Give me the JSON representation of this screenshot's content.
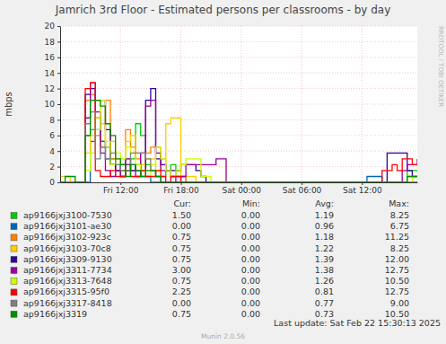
{
  "chart_data": {
    "type": "line",
    "title": "Jamrich 3rd Floor - Estimated persons per classrooms - by day",
    "y_label": "mbps",
    "side_text": "RRDTOOL / TOBI OETIKER",
    "footer": "Last update: Sat Feb 22 15:30:13 2025",
    "version": "Munin 2.0.56",
    "line_style": "step",
    "grid": true,
    "legend": "bottom",
    "xlim": [
      6,
      41.5
    ],
    "xticks": [
      {
        "value": 12,
        "label": "Fri 12:00"
      },
      {
        "value": 18,
        "label": "Fri 18:00"
      },
      {
        "value": 24,
        "label": "Sat 00:00"
      },
      {
        "value": 30,
        "label": "Sat 06:00"
      },
      {
        "value": 36,
        "label": "Sat 12:00"
      }
    ],
    "ylim": [
      0,
      20
    ],
    "yticks": [
      0,
      2,
      4,
      6,
      8,
      10,
      12,
      14,
      16,
      18,
      20
    ],
    "stat_headers": [
      "Cur:",
      "Min:",
      "Avg:",
      "Max:"
    ],
    "x": [
      6,
      6.5,
      7,
      7.5,
      8,
      8.5,
      9,
      9.5,
      10,
      10.5,
      11,
      11.5,
      12,
      12.5,
      13,
      13.5,
      14,
      14.5,
      15,
      15.5,
      16,
      16.5,
      17,
      17.5,
      18,
      18.5,
      19,
      19.5,
      20,
      20.5,
      21,
      21.5,
      22,
      22.5,
      23,
      23.5,
      24,
      24.5,
      25,
      25.5,
      26,
      26.5,
      27,
      27.5,
      28,
      28.5,
      29,
      29.5,
      30,
      30.5,
      31,
      31.5,
      32,
      32.5,
      33,
      33.5,
      34,
      34.5,
      35,
      35.5,
      36,
      36.5,
      37,
      37.5,
      38,
      38.5,
      39,
      39.5,
      40,
      40.5,
      41,
      41.5
    ],
    "series": [
      {
        "name": "ap9166jxj3100-7530",
        "color": "#00cc00",
        "stats": [
          "1.50",
          "0.00",
          "1.19",
          "8.25"
        ],
        "values": [
          0,
          0,
          0,
          0,
          0,
          6,
          6.75,
          8.25,
          5.25,
          4.5,
          3,
          2.25,
          1.5,
          2.25,
          3,
          7.5,
          6,
          2.25,
          1.5,
          0.75,
          0.75,
          1.5,
          2.25,
          0.75,
          0.75,
          0,
          0,
          0,
          0,
          0,
          0,
          0,
          0,
          0,
          0,
          0,
          0,
          0,
          0,
          0,
          0,
          0,
          0,
          0,
          0,
          0,
          0,
          0,
          0,
          0,
          0,
          0,
          0,
          0,
          0,
          0,
          0,
          0,
          0,
          0,
          0,
          0,
          0,
          0,
          0,
          0,
          0,
          0,
          0,
          1.5,
          1.5,
          1.5
        ]
      },
      {
        "name": "ap9166jxj3101-ae30",
        "color": "#0066b3",
        "stats": [
          "0.00",
          "0.00",
          "0.96",
          "6.75"
        ],
        "values": [
          0,
          0,
          0,
          0,
          0,
          0,
          5.25,
          6.75,
          5.25,
          3,
          2.25,
          1.5,
          0.75,
          1.5,
          2.25,
          1.5,
          0.75,
          0.75,
          0,
          0,
          0,
          0,
          0,
          0,
          0,
          0,
          0,
          0,
          0,
          0,
          0,
          0,
          0,
          0,
          0,
          0,
          0,
          0,
          0,
          0,
          0,
          0,
          0,
          0,
          0,
          0,
          0,
          0,
          0,
          0,
          0,
          0,
          0,
          0,
          0,
          0,
          0,
          0,
          0,
          0,
          0,
          0.75,
          0.75,
          0.75,
          0,
          0,
          0,
          0,
          0,
          0,
          0,
          0
        ]
      },
      {
        "name": "ap9166jxj3102-923c",
        "color": "#ff8000",
        "stats": [
          "0.75",
          "0.00",
          "1.18",
          "11.25"
        ],
        "values": [
          0,
          0,
          0,
          0,
          0,
          10.5,
          11.25,
          6,
          4.5,
          10.5,
          3,
          1.5,
          1.5,
          6.75,
          4.5,
          3,
          1.5,
          3.75,
          4.5,
          4.5,
          3,
          1.5,
          0.75,
          0.75,
          0.75,
          0,
          0,
          0,
          0,
          0,
          0,
          0,
          0,
          0,
          0,
          0,
          0,
          0,
          0,
          0,
          0,
          0,
          0,
          0,
          0,
          0,
          0,
          0,
          0,
          0,
          0,
          0,
          0,
          0,
          0,
          0,
          0,
          0,
          0,
          0,
          0,
          0,
          0,
          0,
          0,
          0,
          0,
          0,
          0,
          0.75,
          0.75,
          0.75
        ]
      },
      {
        "name": "ap9166jxj3103-70c8",
        "color": "#ffcc00",
        "stats": [
          "0.75",
          "0.00",
          "1.22",
          "8.25"
        ],
        "values": [
          0.75,
          0.75,
          0,
          0,
          0,
          3.75,
          6,
          8.25,
          7.5,
          4.5,
          5.25,
          3,
          2.25,
          5.25,
          6,
          3.75,
          2.25,
          3,
          3,
          1.5,
          2.25,
          7.5,
          8.25,
          8.25,
          0.75,
          0.75,
          0.75,
          0,
          0,
          0,
          0,
          0,
          0,
          0,
          0,
          0,
          0,
          0,
          0,
          0,
          0,
          0,
          0,
          0,
          0,
          0,
          0,
          0,
          0,
          0,
          0,
          0,
          0,
          0,
          0,
          0,
          0,
          0,
          0,
          0,
          0,
          0,
          0,
          0,
          0,
          0,
          0,
          0,
          0,
          0.75,
          0.75,
          0.75
        ]
      },
      {
        "name": "ap9166jxj3309-9130",
        "color": "#330099",
        "stats": [
          "0.75",
          "0.00",
          "1.39",
          "12.00"
        ],
        "values": [
          0,
          0,
          0,
          0,
          0,
          11.25,
          12,
          10.5,
          10.5,
          6.75,
          2.25,
          1.5,
          2.25,
          3,
          1.5,
          2.25,
          1.5,
          10.5,
          12,
          3,
          2.25,
          1.5,
          1.5,
          1.5,
          2.25,
          2.25,
          2.25,
          1.5,
          0.75,
          0,
          0,
          0,
          0,
          0,
          0,
          0,
          0,
          0,
          0,
          0,
          0,
          0,
          0,
          0,
          0,
          0,
          0,
          0,
          0,
          0,
          0,
          0,
          0,
          0,
          0,
          0,
          0,
          0,
          0,
          0,
          0,
          0,
          0,
          0,
          0,
          3.75,
          3.75,
          3.75,
          3.75,
          1.5,
          0.75,
          0.75
        ]
      },
      {
        "name": "ap9166jxj3311-7734",
        "color": "#990099",
        "stats": [
          "3.00",
          "0.00",
          "1.38",
          "12.75"
        ],
        "values": [
          0,
          0,
          0,
          0,
          0,
          8.25,
          12.75,
          9,
          3.75,
          1.5,
          0.75,
          1.5,
          0.75,
          2.25,
          1.5,
          0.75,
          3.75,
          9.75,
          10.5,
          3.75,
          1.5,
          1.5,
          0.75,
          0,
          0.75,
          2.25,
          2.25,
          2.25,
          2.25,
          2.25,
          2.25,
          3,
          3,
          0,
          0,
          0,
          0,
          0,
          0,
          0,
          0,
          0,
          0,
          0,
          0,
          0,
          0,
          0,
          0,
          0,
          0,
          0,
          0,
          0,
          0,
          0,
          0,
          0,
          0,
          0,
          0,
          0,
          0,
          0,
          0,
          0,
          0,
          0,
          1.5,
          2.25,
          2.25,
          3
        ]
      },
      {
        "name": "ap9166jxj3313-7648",
        "color": "#ccff00",
        "stats": [
          "0.75",
          "0.00",
          "1.26",
          "10.50"
        ],
        "values": [
          0,
          0,
          0,
          0,
          0,
          1.5,
          3.75,
          6.75,
          10.5,
          5.25,
          2.25,
          3.75,
          3,
          4.5,
          3.75,
          2.25,
          1.5,
          0.75,
          2.25,
          4.5,
          3,
          1.5,
          0.75,
          1.5,
          2.25,
          3,
          3,
          3,
          0.75,
          0.75,
          0,
          0,
          0,
          0,
          0,
          0,
          0,
          0,
          0,
          0,
          0,
          0,
          0,
          0,
          0,
          0,
          0,
          0,
          0,
          0,
          0,
          0,
          0,
          0,
          0,
          0,
          0,
          0,
          0,
          0,
          0,
          0,
          0,
          0,
          0,
          0,
          0,
          0,
          0,
          0,
          0.75,
          0.75
        ]
      },
      {
        "name": "ap9166jxj3315-95f0",
        "color": "#ff0000",
        "stats": [
          "2.25",
          "0.00",
          "0.81",
          "12.75"
        ],
        "values": [
          0,
          0,
          0,
          0,
          0,
          12,
          12.75,
          1.5,
          0.75,
          0.75,
          1.5,
          0.75,
          0.75,
          1.5,
          0.75,
          0.75,
          1.5,
          0.75,
          0.75,
          1.5,
          0.75,
          0,
          0.75,
          0.75,
          0,
          0,
          0,
          0,
          0,
          0,
          0,
          0,
          0,
          0,
          0,
          0,
          0,
          0,
          0,
          0,
          0,
          0,
          0,
          0,
          0,
          0,
          0,
          0,
          0,
          0,
          0,
          0,
          0,
          0,
          0,
          0,
          0,
          0,
          0,
          0,
          0,
          0,
          0,
          0,
          1.5,
          1.5,
          2.25,
          1.5,
          3,
          3,
          2.25,
          2.25
        ]
      },
      {
        "name": "ap9166jxj3317-8418",
        "color": "#808080",
        "stats": [
          "0.00",
          "0.00",
          "0.77",
          "9.00"
        ],
        "values": [
          0,
          0,
          0,
          0,
          0,
          7.5,
          9,
          3,
          4.5,
          3,
          3.75,
          2.25,
          1.5,
          1.5,
          3.75,
          3.75,
          3.75,
          3,
          1.5,
          0.75,
          0,
          0,
          0,
          0,
          0,
          0,
          0,
          0,
          0,
          0,
          0,
          0,
          0,
          0,
          0,
          0,
          0,
          0,
          0,
          0,
          0,
          0,
          0,
          0,
          0,
          0,
          0,
          0,
          0,
          0,
          0,
          0,
          0,
          0,
          0,
          0,
          0,
          0,
          0,
          0,
          0,
          0,
          0,
          0,
          0,
          0,
          0,
          0,
          0,
          0,
          0,
          0
        ]
      },
      {
        "name": "ap9166jxj3319",
        "color": "#008f00",
        "stats": [
          "0.75",
          "0.00",
          "0.73",
          "10.50"
        ],
        "values": [
          0,
          0.75,
          0.75,
          0,
          0,
          6,
          10.5,
          10.5,
          9.75,
          7.5,
          6,
          3,
          2.25,
          0.75,
          2.25,
          1.5,
          0.75,
          1.5,
          1.5,
          0.75,
          0,
          0,
          0,
          0,
          0,
          0,
          0,
          0,
          0,
          0,
          0,
          0,
          0,
          0,
          0,
          0,
          0,
          0,
          0,
          0,
          0,
          0,
          0,
          0,
          0,
          0,
          0,
          0,
          0,
          0,
          0,
          0,
          0,
          0,
          0,
          0,
          0,
          0,
          0,
          0,
          0,
          0,
          0,
          0,
          0,
          0,
          0,
          0,
          0,
          0.75,
          0.75,
          0.75
        ]
      }
    ]
  }
}
